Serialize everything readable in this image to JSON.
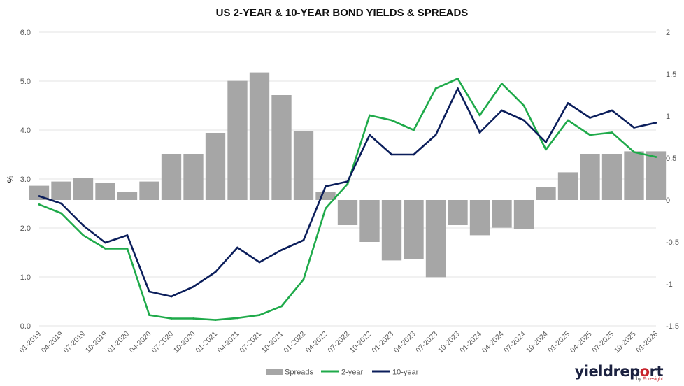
{
  "chart_data": {
    "type": "line",
    "title": "US 2-YEAR & 10-YEAR BOND YIELDS & SPREADS",
    "ylabel": "%",
    "ylim": [
      0.0,
      6.0
    ],
    "y2lim": [
      -1.5,
      2.0
    ],
    "yticks": [
      "0.0",
      "1.0",
      "2.0",
      "3.0",
      "4.0",
      "5.0",
      "6.0"
    ],
    "y2ticks": [
      "-1.5",
      "-1",
      "-0.5",
      "0",
      "0.5",
      "1",
      "1.5",
      "2"
    ],
    "xticks": [
      "01-2019",
      "04-2019",
      "07-2019",
      "10-2019",
      "01-2020",
      "04-2020",
      "07-2020",
      "10-2020",
      "01-2021",
      "04-2021",
      "07-2021",
      "10-2021",
      "01-2022",
      "04-2022",
      "07-2022",
      "10-2022",
      "01-2023",
      "04-2023",
      "07-2023",
      "10-2023",
      "01-2024",
      "04-2024",
      "07-2024",
      "10-2024",
      "01-2025",
      "04-2025",
      "07-2025",
      "10-2025",
      "01-2026"
    ],
    "legend_position": "bottom",
    "series": [
      {
        "name": "Spreads",
        "kind": "bar",
        "axis": "right",
        "color": "#a6a6a6",
        "values": [
          0.17,
          0.22,
          0.26,
          0.2,
          0.1,
          0.22,
          0.55,
          0.55,
          0.8,
          1.42,
          1.52,
          1.25,
          0.82,
          0.1,
          -0.3,
          -0.5,
          -0.72,
          -0.7,
          -0.92,
          -0.3,
          -0.42,
          -0.33,
          -0.35,
          0.15,
          0.33,
          0.55,
          0.55,
          0.58,
          0.58
        ]
      },
      {
        "name": "2-year",
        "kind": "line",
        "axis": "left",
        "color": "#1faa4a",
        "values": [
          2.48,
          2.3,
          1.85,
          1.58,
          1.58,
          0.22,
          0.15,
          0.15,
          0.12,
          0.16,
          0.22,
          0.4,
          0.95,
          2.4,
          2.9,
          4.3,
          4.2,
          4.0,
          4.85,
          5.05,
          4.3,
          4.95,
          4.5,
          3.6,
          4.2,
          3.9,
          3.95,
          3.55,
          3.45
        ]
      },
      {
        "name": "10-year",
        "kind": "line",
        "axis": "left",
        "color": "#0b1e5b",
        "values": [
          2.65,
          2.5,
          2.05,
          1.7,
          1.85,
          0.7,
          0.6,
          0.8,
          1.1,
          1.6,
          1.3,
          1.55,
          1.75,
          2.85,
          2.95,
          3.9,
          3.5,
          3.5,
          3.9,
          4.85,
          3.95,
          4.4,
          4.2,
          3.75,
          4.55,
          4.25,
          4.4,
          4.05,
          4.15
        ]
      }
    ]
  },
  "legend": {
    "spreads": "Spreads",
    "two_year": "2-year",
    "ten_year": "10-year"
  },
  "brand": {
    "part1": "yield",
    "part2": "rep",
    "part3": "o",
    "part4": "rt",
    "by": "by",
    "company": "Foresight"
  },
  "colors": {
    "spreads": "#a6a6a6",
    "two_year": "#1faa4a",
    "ten_year": "#0b1e5b"
  }
}
